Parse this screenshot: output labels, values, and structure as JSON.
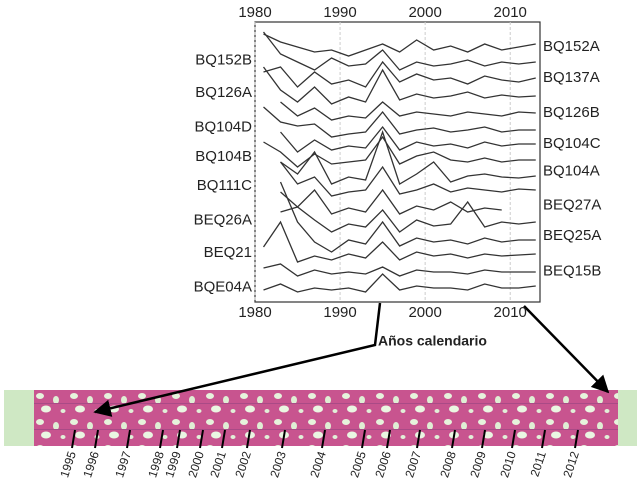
{
  "chart_data": {
    "type": "line",
    "x": [
      1981,
      1983,
      1985,
      1987,
      1989,
      1991,
      1993,
      1995,
      1997,
      1999,
      2001,
      2003,
      2005,
      2007,
      2009,
      2011,
      2013
    ],
    "xlim": [
      1980,
      2013.5
    ],
    "xticks": [
      1980,
      1990,
      2000,
      2010
    ],
    "ylim": [
      0,
      280
    ],
    "grid": true,
    "color": "#333333",
    "series": [
      {
        "name": "BQ152A",
        "values": [
          268,
          260,
          255,
          250,
          252,
          246,
          252,
          258,
          250,
          262,
          252,
          256,
          250,
          258,
          252,
          255,
          258
        ]
      },
      {
        "name": "BQ152B",
        "values": [
          270,
          248,
          240,
          232,
          244,
          236,
          238,
          252,
          232,
          240,
          236,
          238,
          242,
          236,
          240,
          238,
          240
        ]
      },
      {
        "name": "BQ137A",
        "values": [
          230,
          235,
          215,
          230,
          218,
          222,
          215,
          240,
          220,
          228,
          222,
          224,
          218,
          226,
          222,
          220,
          224
        ]
      },
      {
        "name": "BQ126A",
        "values": [
          235,
          212,
          200,
          215,
          198,
          205,
          200,
          232,
          202,
          208,
          204,
          206,
          210,
          204,
          207,
          205,
          206
        ]
      },
      {
        "name": "BQ126B",
        "values": [
          null,
          200,
          186,
          194,
          182,
          186,
          184,
          200,
          186,
          190,
          188,
          186,
          190,
          188,
          186,
          190,
          189
        ]
      },
      {
        "name": "BQ104D",
        "values": [
          195,
          180,
          176,
          178,
          165,
          168,
          170,
          190,
          168,
          172,
          174,
          170,
          172,
          175,
          170,
          172,
          172
        ]
      },
      {
        "name": "BQ104C",
        "values": [
          null,
          170,
          150,
          162,
          152,
          156,
          154,
          175,
          152,
          160,
          156,
          158,
          154,
          160,
          156,
          158,
          158
        ]
      },
      {
        "name": "BQ104B",
        "values": [
          160,
          150,
          135,
          148,
          138,
          140,
          142,
          165,
          138,
          146,
          150,
          142,
          140,
          144,
          140,
          142,
          142
        ]
      },
      {
        "name": "BQ104A",
        "values": [
          null,
          140,
          128,
          150,
          118,
          125,
          122,
          170,
          118,
          128,
          140,
          120,
          126,
          128,
          125,
          124,
          126
        ]
      },
      {
        "name": "BQ111C",
        "values": [
          null,
          140,
          118,
          125,
          106,
          110,
          112,
          135,
          108,
          112,
          118,
          110,
          114,
          112,
          110,
          113,
          112
        ]
      },
      {
        "name": "BEQ27A",
        "values": [
          null,
          110,
          95,
          112,
          88,
          94,
          90,
          112,
          88,
          96,
          92,
          100,
          90,
          94,
          92,
          null,
          null
        ]
      },
      {
        "name": "BEQ26A",
        "values": [
          null,
          90,
          95,
          82,
          70,
          78,
          75,
          92,
          70,
          82,
          76,
          78,
          100,
          75,
          80,
          78,
          80
        ]
      },
      {
        "name": "BEQ25A",
        "values": [
          null,
          120,
          80,
          60,
          50,
          62,
          58,
          80,
          56,
          64,
          60,
          62,
          58,
          64,
          60,
          62,
          62
        ]
      },
      {
        "name": "BEQ21",
        "values": [
          55,
          80,
          40,
          46,
          42,
          48,
          44,
          60,
          42,
          50,
          46,
          48,
          44,
          48,
          46,
          47,
          48
        ]
      },
      {
        "name": "BEQ15B",
        "values": [
          34,
          38,
          26,
          32,
          28,
          30,
          28,
          35,
          26,
          32,
          30,
          30,
          28,
          32,
          30,
          30,
          30
        ]
      },
      {
        "name": "BQE04A",
        "values": [
          12,
          18,
          10,
          14,
          12,
          14,
          10,
          28,
          12,
          16,
          14,
          14,
          12,
          18,
          14,
          14,
          16
        ]
      }
    ]
  },
  "figure": {
    "annotation": "Años calendario",
    "ring_years": [
      "1995",
      "1996",
      "1997",
      "1998",
      "1999",
      "2000",
      "2001",
      "2002",
      "2003",
      "2004",
      "2005",
      "2006",
      "2007",
      "2008",
      "2009",
      "2010",
      "2011",
      "2012"
    ]
  }
}
